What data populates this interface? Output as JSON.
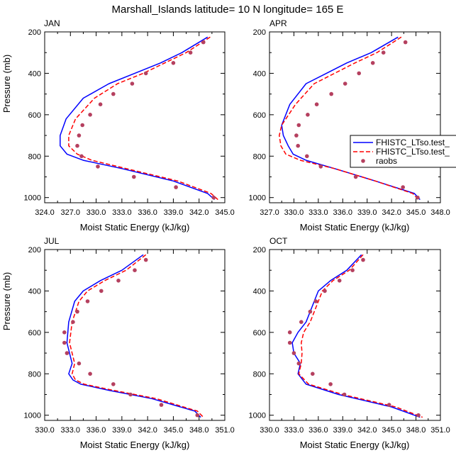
{
  "figure": {
    "title": "Marshall_Islands  latitude= 10 N longitude= 165 E"
  },
  "legend": {
    "items": [
      {
        "label": "FHISTC_LTso.test_",
        "color": "#0000ff",
        "style": "solid"
      },
      {
        "label": "FHISTC_LTso.test_",
        "color": "#ff0000",
        "style": "dashed"
      },
      {
        "label": "raobs",
        "color": "#b5405f",
        "style": "marker"
      }
    ]
  },
  "chart_data": [
    {
      "type": "line",
      "panel": "JAN",
      "title": "JAN",
      "xlabel": "Moist Static Energy (kJ/kg)",
      "ylabel": "Pressure (mb)",
      "xlim": [
        324,
        345
      ],
      "ylim": [
        1025,
        200
      ],
      "xticks": [
        "324.0",
        "327.0",
        "330.0",
        "333.0",
        "336.0",
        "339.0",
        "342.0",
        "345.0"
      ],
      "yticks": [
        "200",
        "400",
        "600",
        "800",
        "1000"
      ],
      "series": [
        {
          "name": "FHISTC_LTso.test_",
          "color": "#0000ff",
          "dash": "solid",
          "x": [
            343.0,
            340.0,
            337.5,
            334.5,
            331.5,
            328.5,
            326.5,
            325.8,
            325.8,
            326.6,
            328.5,
            333.0,
            339.0,
            343.0,
            343.8
          ],
          "y": [
            225,
            300,
            350,
            400,
            450,
            520,
            620,
            700,
            750,
            790,
            820,
            860,
            920,
            980,
            1010
          ]
        },
        {
          "name": "FHISTC_LTso.test_",
          "color": "#ff0000",
          "dash": "dashed",
          "x": [
            343.3,
            340.5,
            338.0,
            335.5,
            332.5,
            329.8,
            327.6,
            326.8,
            326.8,
            327.8,
            329.5,
            333.5,
            339.5,
            343.4,
            344.2
          ],
          "y": [
            225,
            300,
            350,
            400,
            450,
            520,
            620,
            700,
            750,
            790,
            820,
            860,
            920,
            980,
            1010
          ]
        }
      ],
      "points": {
        "name": "raobs",
        "x": [
          342.5,
          341.0,
          339.0,
          335.8,
          334.2,
          332.0,
          330.5,
          329.3,
          328.4,
          328.0,
          327.8,
          328.3,
          330.2,
          334.4,
          339.3,
          343.7
        ],
        "y": [
          250,
          300,
          350,
          400,
          450,
          500,
          550,
          600,
          650,
          700,
          750,
          800,
          850,
          900,
          950,
          1000
        ]
      }
    },
    {
      "type": "line",
      "panel": "APR",
      "title": "APR",
      "xlabel": "Moist Static Energy (kJ/kg)",
      "ylabel": "",
      "xlim": [
        327,
        348
      ],
      "ylim": [
        1025,
        200
      ],
      "xticks": [
        "327.0",
        "330.0",
        "333.0",
        "336.0",
        "339.0",
        "342.0",
        "345.0",
        "348.0"
      ],
      "yticks": [
        "200",
        "400",
        "600",
        "800",
        "1000"
      ],
      "series": [
        {
          "name": "FHISTC_LTso.test_",
          "color": "#0000ff",
          "dash": "solid",
          "x": [
            342.8,
            339.5,
            336.5,
            334.0,
            331.5,
            329.5,
            328.5,
            328.7,
            329.3,
            329.9,
            331.5,
            335.0,
            340.0,
            344.8,
            345.5
          ],
          "y": [
            225,
            300,
            350,
            400,
            450,
            550,
            650,
            700,
            750,
            790,
            820,
            860,
            920,
            980,
            1010
          ]
        },
        {
          "name": "FHISTC_LTso.test_",
          "color": "#ff0000",
          "dash": "dashed",
          "x": [
            343.2,
            340.2,
            337.5,
            335.0,
            332.5,
            330.2,
            328.5,
            328.2,
            328.4,
            329.0,
            330.8,
            335.0,
            340.0,
            344.6,
            345.3
          ],
          "y": [
            225,
            300,
            350,
            400,
            450,
            550,
            650,
            700,
            750,
            790,
            820,
            860,
            920,
            980,
            1010
          ]
        }
      ],
      "points": {
        "name": "raobs",
        "x": [
          343.7,
          341.0,
          339.7,
          338.0,
          336.3,
          334.6,
          332.8,
          331.7,
          330.6,
          330.3,
          330.5,
          331.6,
          333.3,
          337.6,
          343.4,
          345.2
        ],
        "y": [
          250,
          300,
          350,
          400,
          450,
          500,
          550,
          600,
          650,
          700,
          750,
          800,
          850,
          900,
          950,
          1000
        ]
      }
    },
    {
      "type": "line",
      "panel": "JUL",
      "title": "JUL",
      "xlabel": "Moist Static Energy (kJ/kg)",
      "ylabel": "Pressure (mb)",
      "xlim": [
        330,
        351
      ],
      "ylim": [
        1025,
        200
      ],
      "xticks": [
        "330.0",
        "333.0",
        "336.0",
        "339.0",
        "342.0",
        "345.0",
        "348.0",
        "351.0"
      ],
      "yticks": [
        "200",
        "400",
        "600",
        "800",
        "1000"
      ],
      "series": [
        {
          "name": "FHISTC_LTso.test_",
          "color": "#0000ff",
          "dash": "solid",
          "x": [
            341.5,
            339.0,
            336.5,
            334.5,
            333.5,
            332.8,
            332.6,
            333.2,
            332.8,
            333.3,
            334.2,
            337.5,
            342.5,
            347.5,
            348.2
          ],
          "y": [
            225,
            300,
            350,
            400,
            450,
            550,
            650,
            750,
            800,
            830,
            850,
            880,
            920,
            980,
            1010
          ]
        },
        {
          "name": "FHISTC_LTso.test_",
          "color": "#ff0000",
          "dash": "dashed",
          "x": [
            341.8,
            339.5,
            337.0,
            335.0,
            334.0,
            333.2,
            332.9,
            333.5,
            333.2,
            333.6,
            334.6,
            338.0,
            343.0,
            347.8,
            348.5
          ],
          "y": [
            225,
            300,
            350,
            400,
            450,
            550,
            650,
            750,
            800,
            830,
            850,
            880,
            920,
            980,
            1010
          ]
        }
      ],
      "points": {
        "name": "raobs",
        "x": [
          341.8,
          340.5,
          338.6,
          336.6,
          335.0,
          333.8,
          333.3,
          332.3,
          332.3,
          332.6,
          334.0,
          335.3,
          338.0,
          340.0,
          343.6,
          347.8
        ],
        "y": [
          250,
          300,
          350,
          400,
          450,
          500,
          550,
          600,
          650,
          700,
          750,
          800,
          850,
          900,
          950,
          1000
        ]
      }
    },
    {
      "type": "line",
      "panel": "OCT",
      "title": "OCT",
      "xlabel": "Moist Static Energy (kJ/kg)",
      "ylabel": "",
      "xlim": [
        330,
        351
      ],
      "ylim": [
        1025,
        200
      ],
      "xticks": [
        "330.0",
        "333.0",
        "336.0",
        "339.0",
        "342.0",
        "345.0",
        "348.0",
        "351.0"
      ],
      "yticks": [
        "200",
        "400",
        "600",
        "800",
        "1000"
      ],
      "series": [
        {
          "name": "FHISTC_LTso.test_",
          "color": "#0000ff",
          "dash": "solid",
          "x": [
            341.3,
            339.5,
            337.5,
            336.0,
            335.5,
            334.5,
            333.5,
            332.8,
            333.0,
            333.8,
            333.5,
            334.5,
            338.5,
            345.0,
            348.5
          ],
          "y": [
            225,
            300,
            350,
            400,
            450,
            550,
            600,
            650,
            700,
            750,
            800,
            850,
            900,
            960,
            1010
          ]
        },
        {
          "name": "FHISTC_LTso.test_",
          "color": "#ff0000",
          "dash": "dashed",
          "x": [
            341.5,
            339.8,
            337.8,
            336.5,
            336.0,
            335.0,
            334.2,
            333.9,
            334.0,
            333.9,
            333.6,
            334.8,
            339.0,
            345.5,
            348.8
          ],
          "y": [
            225,
            300,
            350,
            400,
            450,
            550,
            600,
            650,
            700,
            750,
            800,
            850,
            900,
            960,
            1010
          ]
        }
      ],
      "points": {
        "name": "raobs",
        "x": [
          341.5,
          340.2,
          338.6,
          336.8,
          335.7,
          335.0,
          333.9,
          332.5,
          332.5,
          333.0,
          333.6,
          335.3,
          337.5,
          339.2,
          344.7,
          348.3
        ],
        "y": [
          250,
          300,
          350,
          400,
          450,
          500,
          550,
          600,
          650,
          700,
          750,
          800,
          850,
          900,
          950,
          1000
        ]
      }
    }
  ]
}
